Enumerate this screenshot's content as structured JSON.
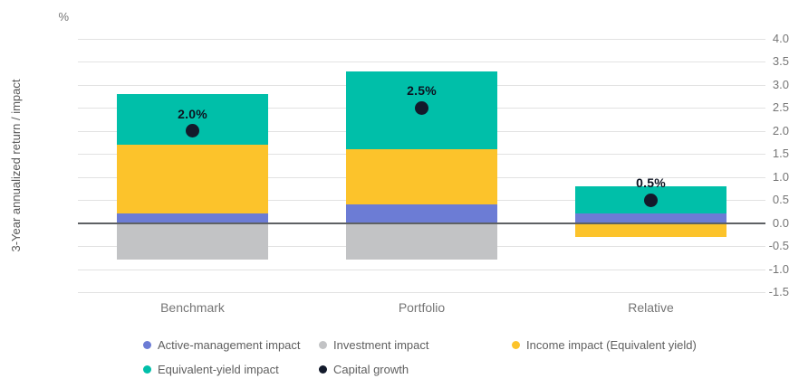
{
  "chart_data": {
    "type": "bar",
    "subtype": "stacked-column-with-point-overlay",
    "categories": [
      "Benchmark",
      "Portfolio",
      "Relative"
    ],
    "series": [
      {
        "name": "Active-management impact",
        "color": "#6c7cd5",
        "values": [
          0.2,
          0.4,
          0.2
        ]
      },
      {
        "name": "Income impact (Equivalent yield)",
        "color": "#fcc32b",
        "values": [
          1.5,
          1.2,
          -0.3
        ]
      },
      {
        "name": "Equivalent-yield impact",
        "color": "#00bfa9",
        "values": [
          1.1,
          1.7,
          0.6
        ]
      },
      {
        "name": "Investment impact",
        "color": "#c2c3c5",
        "values": [
          -0.8,
          -0.8,
          0.0
        ]
      }
    ],
    "points": {
      "name": "Capital growth",
      "color": "#131a2b",
      "values": [
        2.0,
        2.5,
        0.5
      ],
      "labels": [
        "2.0%",
        "2.5%",
        "0.5%"
      ]
    },
    "title": "",
    "xlabel": "",
    "ylabel": "3-Year annualized return / impact",
    "unit_label": "%",
    "ylim": [
      -1.5,
      4.0
    ],
    "ytick_step": 0.5,
    "grid": true,
    "zero_line": true,
    "legend_position": "bottom"
  },
  "axis": {
    "y_title": "3-Year annualized return / impact",
    "unit": "%"
  },
  "legend": {
    "rows": [
      [
        {
          "label": "Active-management impact",
          "color": "#6c7cd5"
        },
        {
          "label": "Investment impact",
          "color": "#c2c3c5"
        },
        {
          "label": "Income impact (Equivalent yield)",
          "color": "#fcc32b"
        }
      ],
      [
        {
          "label": "Equivalent-yield impact",
          "color": "#00bfa9"
        },
        {
          "label": "Capital growth",
          "color": "#131a2b"
        }
      ]
    ]
  },
  "colors": {
    "gridline": "#e2e2e2",
    "zero_line": "#5e6164",
    "tick_text": "#757575",
    "legend_text": "#5f5f5f",
    "point_label_text": "#0d1321"
  }
}
